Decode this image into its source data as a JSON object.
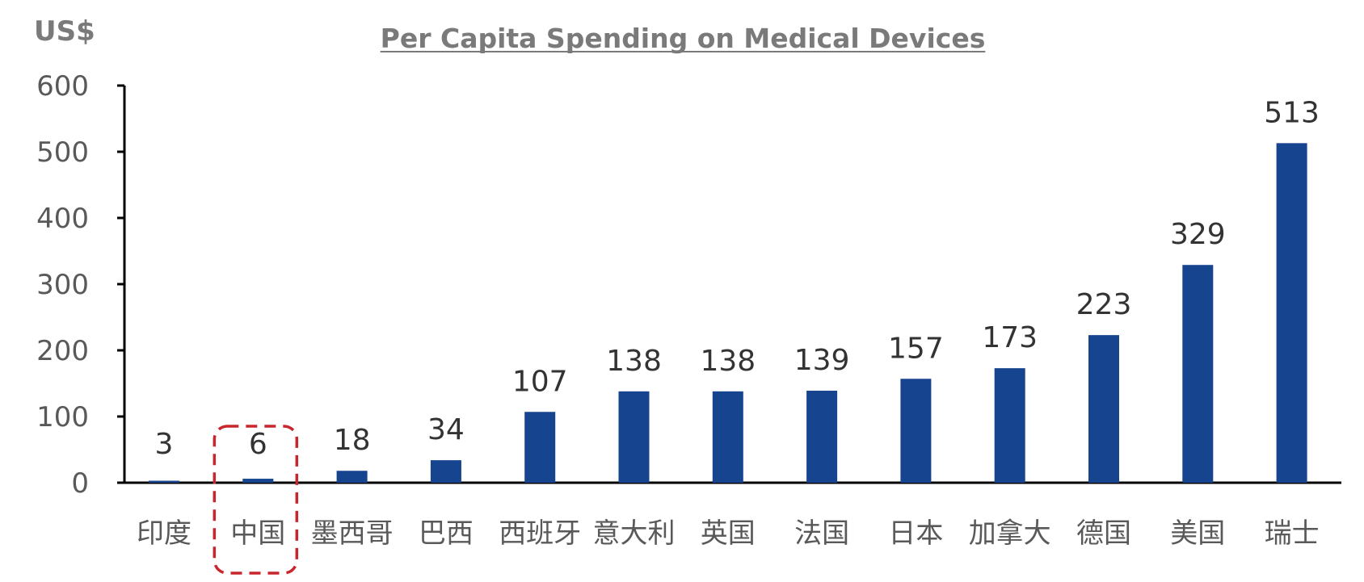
{
  "chart_data": {
    "type": "bar",
    "title": "Per Capita Spending on Medical Devices",
    "unit_label": "US$",
    "xlabel": "",
    "ylabel": "US$",
    "ylim": [
      0,
      600
    ],
    "yticks": [
      0,
      100,
      200,
      300,
      400,
      500,
      600
    ],
    "categories": [
      "印度",
      "中国",
      "墨西哥",
      "巴西",
      "西班牙",
      "意大利",
      "英国",
      "法国",
      "日本",
      "加拿大",
      "德国",
      "美国",
      "瑞士"
    ],
    "values": [
      3,
      6,
      18,
      34,
      107,
      138,
      138,
      139,
      157,
      173,
      223,
      329,
      513
    ],
    "highlighted_category": "中国",
    "bar_color": "#16448f",
    "highlight_color": "#c9252c",
    "grid": false,
    "legend": "none"
  }
}
